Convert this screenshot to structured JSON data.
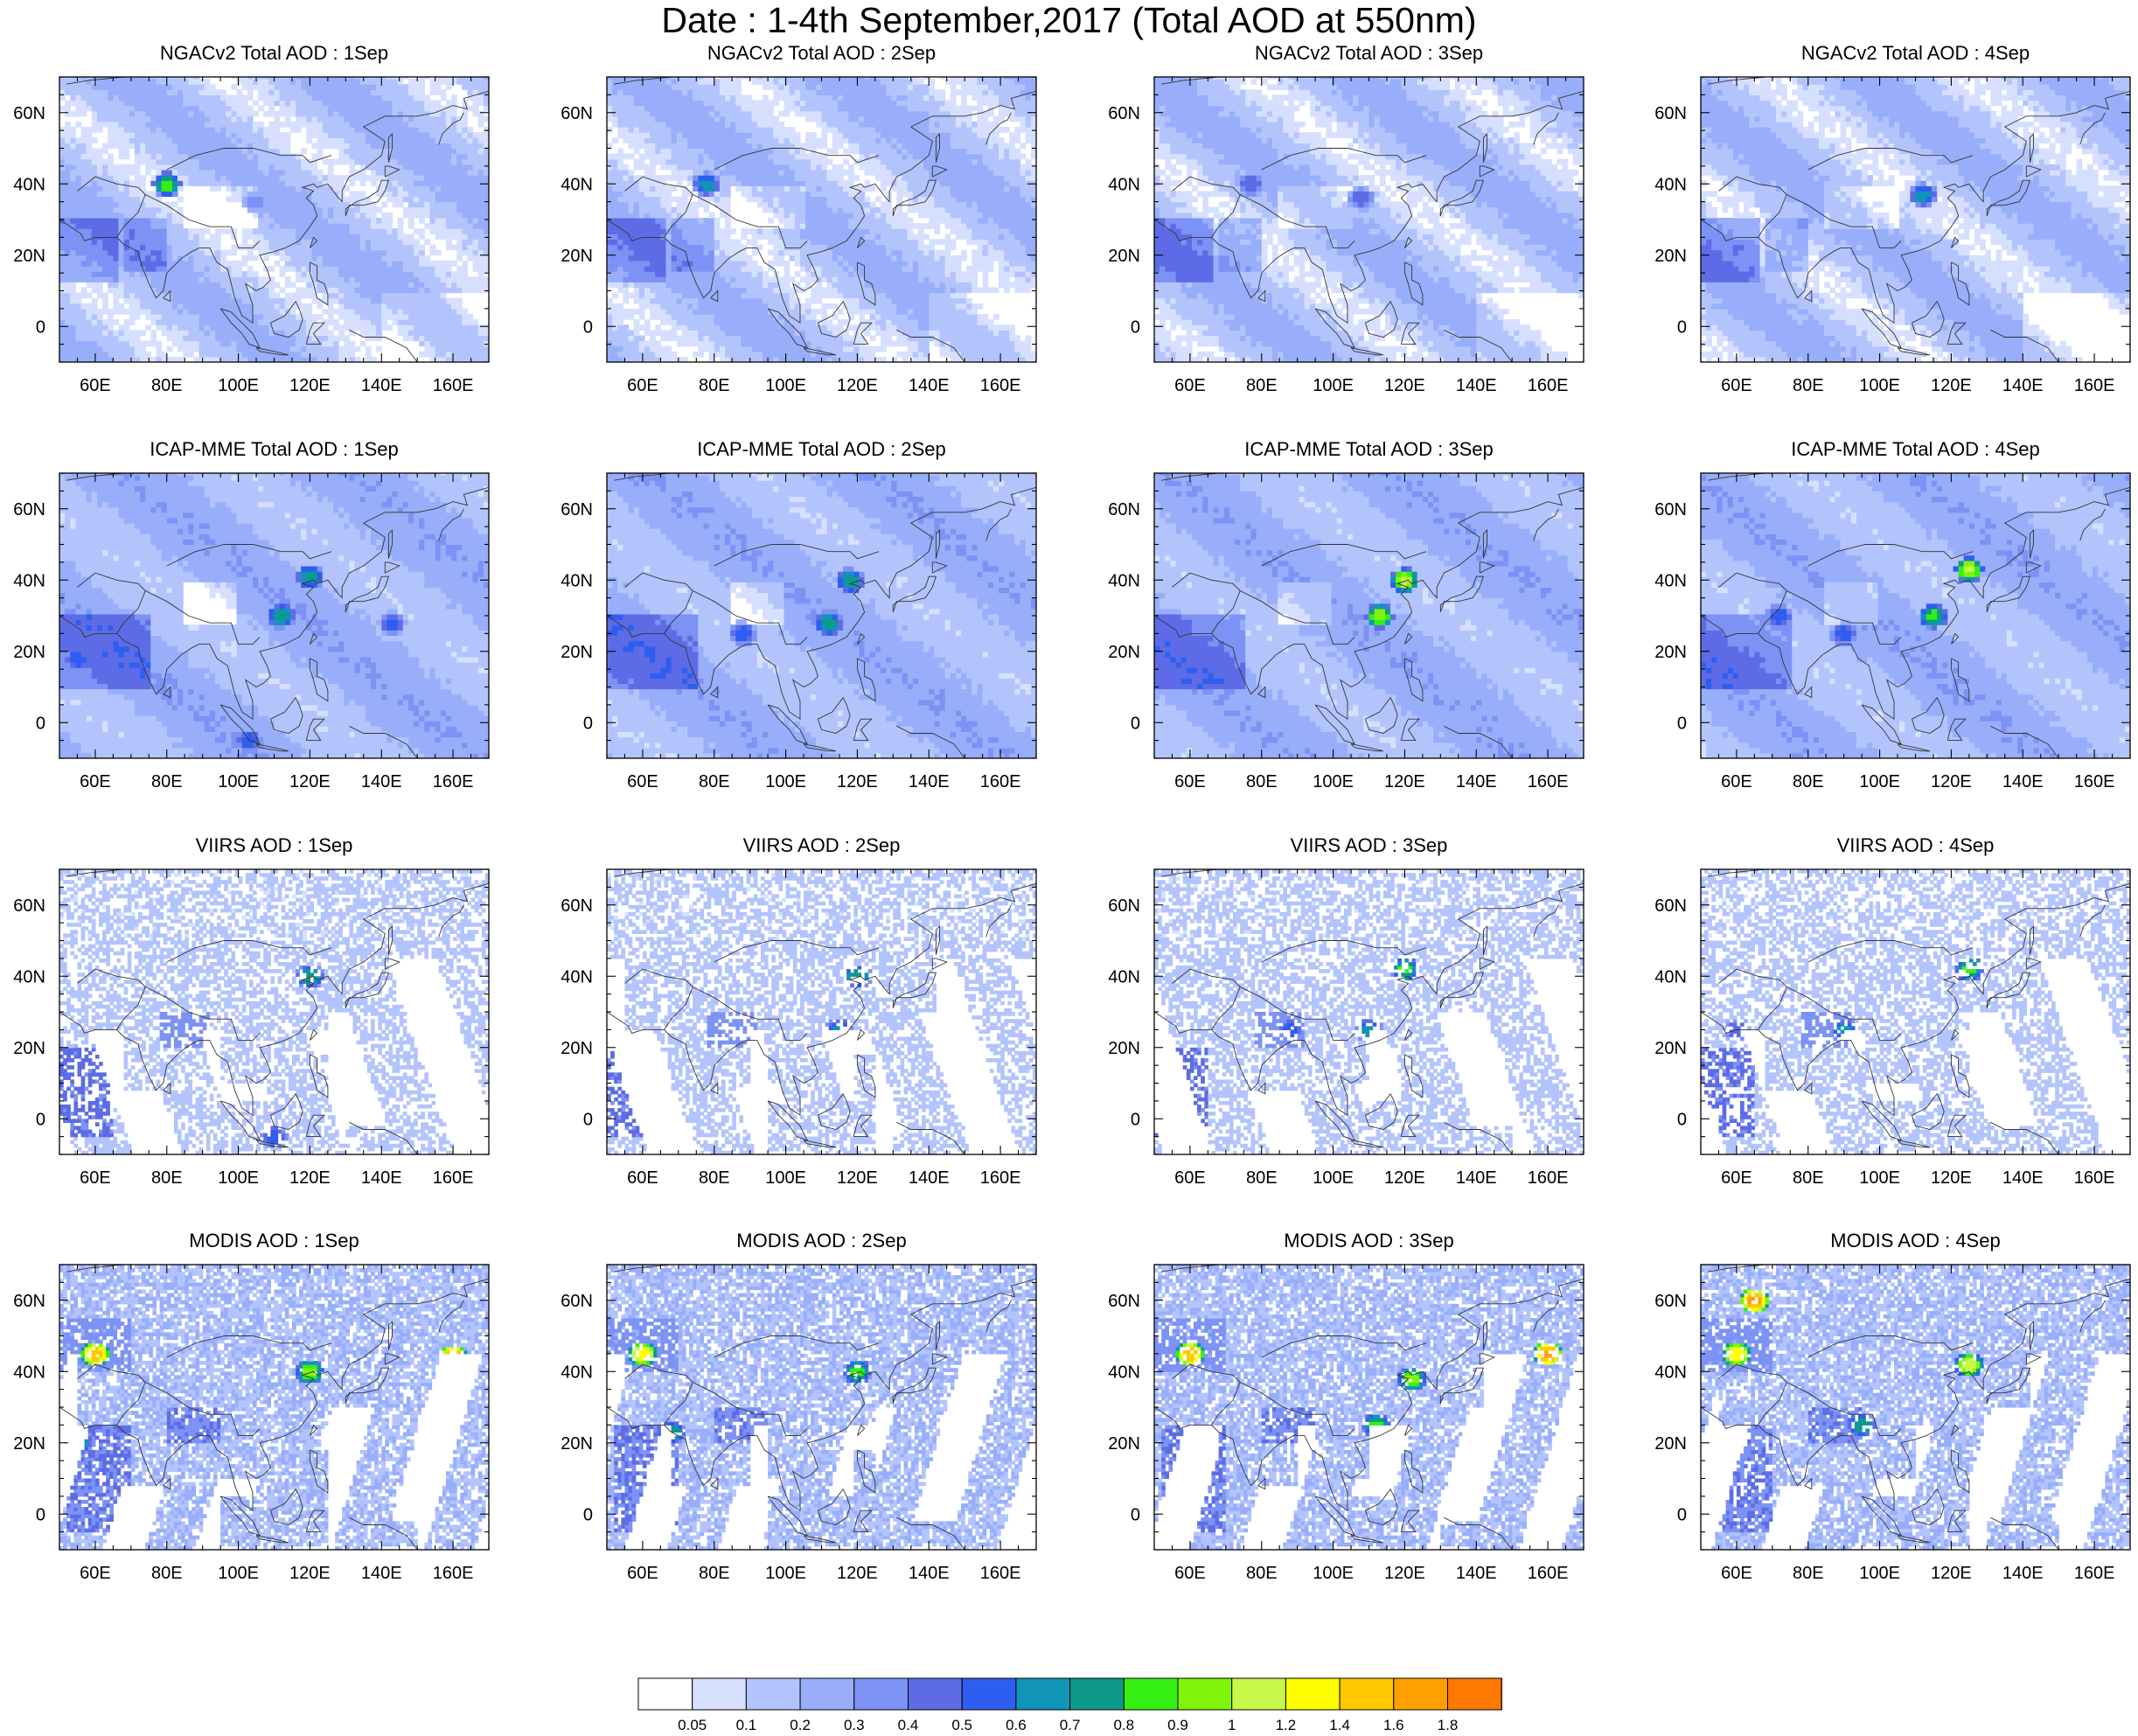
{
  "figure": {
    "title": "Date : 1-4th September,2017 (Total AOD at 550nm)"
  },
  "colors": {
    "land_line": "#333333",
    "frame": "#000000",
    "background": "#ffffff"
  },
  "colorbar": {
    "labels": [
      "0.05",
      "0.1",
      "0.2",
      "0.3",
      "0.4",
      "0.5",
      "0.6",
      "0.7",
      "0.8",
      "0.9",
      "1",
      "1.2",
      "1.4",
      "1.6",
      "1.8"
    ],
    "colors": [
      "#ffffff",
      "#d6e0fe",
      "#b3c4fd",
      "#98aefb",
      "#7c92f4",
      "#5d6ce6",
      "#2e5ef0",
      "#1094b8",
      "#0d9a8c",
      "#35ef12",
      "#80f50a",
      "#c6f947",
      "#ffff00",
      "#ffc800",
      "#ffa000",
      "#ff7800",
      "#ff1e00"
    ]
  },
  "chart_data": [
    {
      "type": "heatmap",
      "id": "ngac-1",
      "title": "NGACv2 Total AOD : 1Sep",
      "model": "NGACv2",
      "day": "1Sep",
      "xticks": [
        "60E",
        "80E",
        "100E",
        "120E",
        "140E",
        "160E"
      ],
      "yticks": [
        "60N",
        "40N",
        "20N",
        "0"
      ],
      "xlim": [
        50,
        170
      ],
      "ylim": [
        -10,
        70
      ],
      "hotspots": [
        {
          "lon": 80,
          "lat": 40,
          "aod": 0.9
        },
        {
          "lon": 60,
          "lat": 25,
          "aod": 0.45
        },
        {
          "lon": 105,
          "lat": 35,
          "aod": 0.4
        }
      ]
    },
    {
      "type": "heatmap",
      "id": "ngac-2",
      "title": "NGACv2 Total AOD : 2Sep",
      "model": "NGACv2",
      "day": "2Sep",
      "xticks": [
        "60E",
        "80E",
        "100E",
        "120E",
        "140E",
        "160E"
      ],
      "yticks": [
        "60N",
        "40N",
        "20N",
        "0"
      ],
      "xlim": [
        50,
        170
      ],
      "ylim": [
        -10,
        70
      ],
      "hotspots": [
        {
          "lon": 78,
          "lat": 40,
          "aod": 0.7
        },
        {
          "lon": 60,
          "lat": 25,
          "aod": 0.45
        }
      ]
    },
    {
      "type": "heatmap",
      "id": "ngac-3",
      "title": "NGACv2 Total AOD : 3Sep",
      "model": "NGACv2",
      "day": "3Sep",
      "xticks": [
        "60E",
        "80E",
        "100E",
        "120E",
        "140E",
        "160E"
      ],
      "yticks": [
        "60N",
        "40N",
        "20N",
        "0"
      ],
      "xlim": [
        50,
        170
      ],
      "ylim": [
        -10,
        70
      ],
      "hotspots": [
        {
          "lon": 77,
          "lat": 40,
          "aod": 0.5
        },
        {
          "lon": 108,
          "lat": 36,
          "aod": 0.5
        }
      ]
    },
    {
      "type": "heatmap",
      "id": "ngac-4",
      "title": "NGACv2 Total AOD : 4Sep",
      "model": "NGACv2",
      "day": "4Sep",
      "xticks": [
        "60E",
        "80E",
        "100E",
        "120E",
        "140E",
        "160E"
      ],
      "yticks": [
        "60N",
        "40N",
        "20N",
        "0"
      ],
      "xlim": [
        50,
        170
      ],
      "ylim": [
        -10,
        70
      ],
      "hotspots": [
        {
          "lon": 112,
          "lat": 37,
          "aod": 0.7
        },
        {
          "lon": 60,
          "lat": 22,
          "aod": 0.45
        }
      ]
    },
    {
      "type": "heatmap",
      "id": "icap-1",
      "title": "ICAP-MME Total AOD : 1Sep",
      "model": "ICAP-MME",
      "day": "1Sep",
      "xticks": [
        "60E",
        "80E",
        "100E",
        "120E",
        "140E",
        "160E"
      ],
      "yticks": [
        "60N",
        "40N",
        "20N",
        "0"
      ],
      "xlim": [
        50,
        170
      ],
      "ylim": [
        -10,
        70
      ],
      "hotspots": [
        {
          "lon": 112,
          "lat": 30,
          "aod": 0.8
        },
        {
          "lon": 120,
          "lat": 41,
          "aod": 0.8
        },
        {
          "lon": 143,
          "lat": 28,
          "aod": 0.6
        },
        {
          "lon": 55,
          "lat": 18,
          "aod": 0.6
        },
        {
          "lon": 103,
          "lat": -5,
          "aod": 0.6
        }
      ]
    },
    {
      "type": "heatmap",
      "id": "icap-2",
      "title": "ICAP-MME Total AOD : 2Sep",
      "model": "ICAP-MME",
      "day": "2Sep",
      "xticks": [
        "60E",
        "80E",
        "100E",
        "120E",
        "140E",
        "160E"
      ],
      "yticks": [
        "60N",
        "40N",
        "20N",
        "0"
      ],
      "xlim": [
        50,
        170
      ],
      "ylim": [
        -10,
        70
      ],
      "hotspots": [
        {
          "lon": 118,
          "lat": 40,
          "aod": 0.8
        },
        {
          "lon": 112,
          "lat": 28,
          "aod": 0.8
        },
        {
          "lon": 88,
          "lat": 25,
          "aod": 0.6
        }
      ]
    },
    {
      "type": "heatmap",
      "id": "icap-3",
      "title": "ICAP-MME Total AOD : 3Sep",
      "model": "ICAP-MME",
      "day": "3Sep",
      "xticks": [
        "60E",
        "80E",
        "100E",
        "120E",
        "140E",
        "160E"
      ],
      "yticks": [
        "60N",
        "40N",
        "20N",
        "0"
      ],
      "xlim": [
        50,
        170
      ],
      "ylim": [
        -10,
        70
      ],
      "hotspots": [
        {
          "lon": 120,
          "lat": 40,
          "aod": 1.1
        },
        {
          "lon": 113,
          "lat": 30,
          "aod": 1.0
        }
      ]
    },
    {
      "type": "heatmap",
      "id": "icap-4",
      "title": "ICAP-MME Total AOD : 4Sep",
      "model": "ICAP-MME",
      "day": "4Sep",
      "xticks": [
        "60E",
        "80E",
        "100E",
        "120E",
        "140E",
        "160E"
      ],
      "yticks": [
        "60N",
        "40N",
        "20N",
        "0"
      ],
      "xlim": [
        50,
        170
      ],
      "ylim": [
        -10,
        70
      ],
      "hotspots": [
        {
          "lon": 125,
          "lat": 43,
          "aod": 1.1
        },
        {
          "lon": 115,
          "lat": 30,
          "aod": 0.9
        },
        {
          "lon": 72,
          "lat": 30,
          "aod": 0.6
        },
        {
          "lon": 90,
          "lat": 25,
          "aod": 0.6
        }
      ]
    },
    {
      "type": "heatmap",
      "id": "viirs-1",
      "title": "VIIRS AOD : 1Sep",
      "model": "VIIRS",
      "day": "1Sep",
      "xticks": [
        "60E",
        "80E",
        "100E",
        "120E",
        "140E",
        "160E"
      ],
      "yticks": [
        "60N",
        "40N",
        "20N",
        "0"
      ],
      "xlim": [
        50,
        170
      ],
      "ylim": [
        -10,
        70
      ],
      "hotspots": [
        {
          "lon": 120,
          "lat": 40,
          "aod": 0.8
        },
        {
          "lon": 57,
          "lat": 18,
          "aod": 0.5
        },
        {
          "lon": 110,
          "lat": -5,
          "aod": 0.6
        }
      ]
    },
    {
      "type": "heatmap",
      "id": "viirs-2",
      "title": "VIIRS AOD : 2Sep",
      "model": "VIIRS",
      "day": "2Sep",
      "xticks": [
        "60E",
        "80E",
        "100E",
        "120E",
        "140E",
        "160E"
      ],
      "yticks": [
        "60N",
        "40N",
        "20N",
        "0"
      ],
      "xlim": [
        50,
        170
      ],
      "ylim": [
        -10,
        70
      ],
      "hotspots": [
        {
          "lon": 120,
          "lat": 40,
          "aod": 0.8
        },
        {
          "lon": 115,
          "lat": 25,
          "aod": 0.7
        }
      ]
    },
    {
      "type": "heatmap",
      "id": "viirs-3",
      "title": "VIIRS AOD : 3Sep",
      "model": "VIIRS",
      "day": "3Sep",
      "xticks": [
        "60E",
        "80E",
        "100E",
        "120E",
        "140E",
        "160E"
      ],
      "yticks": [
        "60N",
        "40N",
        "20N",
        "0"
      ],
      "xlim": [
        50,
        170
      ],
      "ylim": [
        -10,
        70
      ],
      "hotspots": [
        {
          "lon": 120,
          "lat": 42,
          "aod": 0.9
        },
        {
          "lon": 88,
          "lat": 25,
          "aod": 0.6
        },
        {
          "lon": 110,
          "lat": 25,
          "aod": 0.7
        }
      ]
    },
    {
      "type": "heatmap",
      "id": "viirs-4",
      "title": "VIIRS AOD : 4Sep",
      "model": "VIIRS",
      "day": "4Sep",
      "xticks": [
        "60E",
        "80E",
        "100E",
        "120E",
        "140E",
        "160E"
      ],
      "yticks": [
        "60N",
        "40N",
        "20N",
        "0"
      ],
      "xlim": [
        50,
        170
      ],
      "ylim": [
        -10,
        70
      ],
      "hotspots": [
        {
          "lon": 90,
          "lat": 25,
          "aod": 0.7
        },
        {
          "lon": 125,
          "lat": 42,
          "aod": 0.9
        },
        {
          "lon": 60,
          "lat": 25,
          "aod": 0.5
        }
      ]
    },
    {
      "type": "heatmap",
      "id": "modis-1",
      "title": "MODIS AOD : 1Sep",
      "model": "MODIS",
      "day": "1Sep",
      "xticks": [
        "60E",
        "80E",
        "100E",
        "120E",
        "140E",
        "160E"
      ],
      "yticks": [
        "60N",
        "40N",
        "20N",
        "0"
      ],
      "xlim": [
        50,
        170
      ],
      "ylim": [
        -10,
        70
      ],
      "hotspots": [
        {
          "lon": 160,
          "lat": 44,
          "aod": 1.8
        },
        {
          "lon": 60,
          "lat": 45,
          "aod": 1.6
        },
        {
          "lon": 120,
          "lat": 40,
          "aod": 1.0
        },
        {
          "lon": 55,
          "lat": 20,
          "aod": 0.8
        }
      ]
    },
    {
      "type": "heatmap",
      "id": "modis-2",
      "title": "MODIS AOD : 2Sep",
      "model": "MODIS",
      "day": "2Sep",
      "xticks": [
        "60E",
        "80E",
        "100E",
        "120E",
        "140E",
        "160E"
      ],
      "yticks": [
        "60N",
        "40N",
        "20N",
        "0"
      ],
      "xlim": [
        50,
        170
      ],
      "ylim": [
        -10,
        70
      ],
      "hotspots": [
        {
          "lon": 60,
          "lat": 45,
          "aod": 1.4
        },
        {
          "lon": 68,
          "lat": 23,
          "aod": 0.8
        },
        {
          "lon": 120,
          "lat": 40,
          "aod": 0.9
        }
      ]
    },
    {
      "type": "heatmap",
      "id": "modis-3",
      "title": "MODIS AOD : 3Sep",
      "model": "MODIS",
      "day": "3Sep",
      "xticks": [
        "60E",
        "80E",
        "100E",
        "120E",
        "140E",
        "160E"
      ],
      "yticks": [
        "60N",
        "40N",
        "20N",
        "0"
      ],
      "xlim": [
        50,
        170
      ],
      "ylim": [
        -10,
        70
      ],
      "hotspots": [
        {
          "lon": 160,
          "lat": 45,
          "aod": 1.8
        },
        {
          "lon": 60,
          "lat": 45,
          "aod": 1.6
        },
        {
          "lon": 122,
          "lat": 38,
          "aod": 1.0
        },
        {
          "lon": 112,
          "lat": 25,
          "aod": 0.9
        }
      ]
    },
    {
      "type": "heatmap",
      "id": "modis-4",
      "title": "MODIS AOD : 4Sep",
      "model": "MODIS",
      "day": "4Sep",
      "xticks": [
        "60E",
        "80E",
        "100E",
        "120E",
        "140E",
        "160E"
      ],
      "yticks": [
        "60N",
        "40N",
        "20N",
        "0"
      ],
      "xlim": [
        50,
        170
      ],
      "ylim": [
        -10,
        70
      ],
      "hotspots": [
        {
          "lon": 65,
          "lat": 60,
          "aod": 1.8
        },
        {
          "lon": 125,
          "lat": 42,
          "aod": 1.2
        },
        {
          "lon": 95,
          "lat": 25,
          "aod": 0.8
        },
        {
          "lon": 60,
          "lat": 45,
          "aod": 1.4
        }
      ]
    }
  ]
}
